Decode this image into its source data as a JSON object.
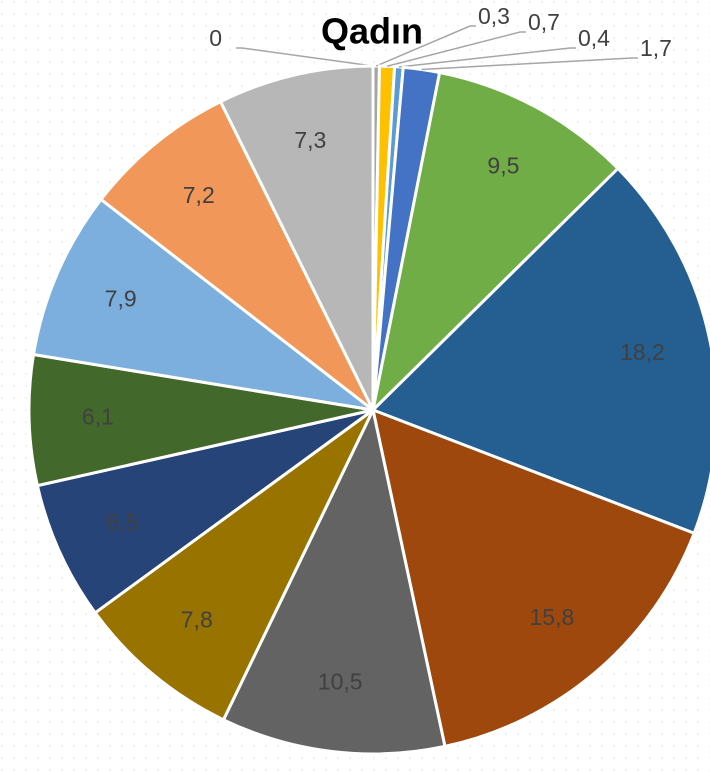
{
  "chart_data": {
    "type": "pie",
    "title": "Qadın",
    "categories": [
      null,
      null,
      null,
      null,
      null,
      null,
      null,
      null,
      null,
      null,
      null,
      null,
      null,
      null,
      null
    ],
    "values": [
      0,
      0.3,
      0.7,
      0.4,
      1.7,
      9.5,
      18.2,
      15.8,
      10.5,
      7.8,
      6.5,
      6.1,
      7.9,
      7.2,
      7.3
    ],
    "value_labels": [
      "0",
      "0,3",
      "0,7",
      "0,4",
      "1,7",
      "9,5",
      "18,2",
      "15,8",
      "10,5",
      "7,8",
      "6,5",
      "6,1",
      "7,9",
      "7,2",
      "7,3"
    ],
    "colors": [
      "#ed7d31",
      "#a5a5a5",
      "#ffc000",
      "#5b9bd5",
      "#4472c4",
      "#70ad47",
      "#255e91",
      "#9e480e",
      "#636363",
      "#997300",
      "#264478",
      "#43682b",
      "#7cafdd",
      "#f1975a",
      "#b7b7b7"
    ]
  }
}
